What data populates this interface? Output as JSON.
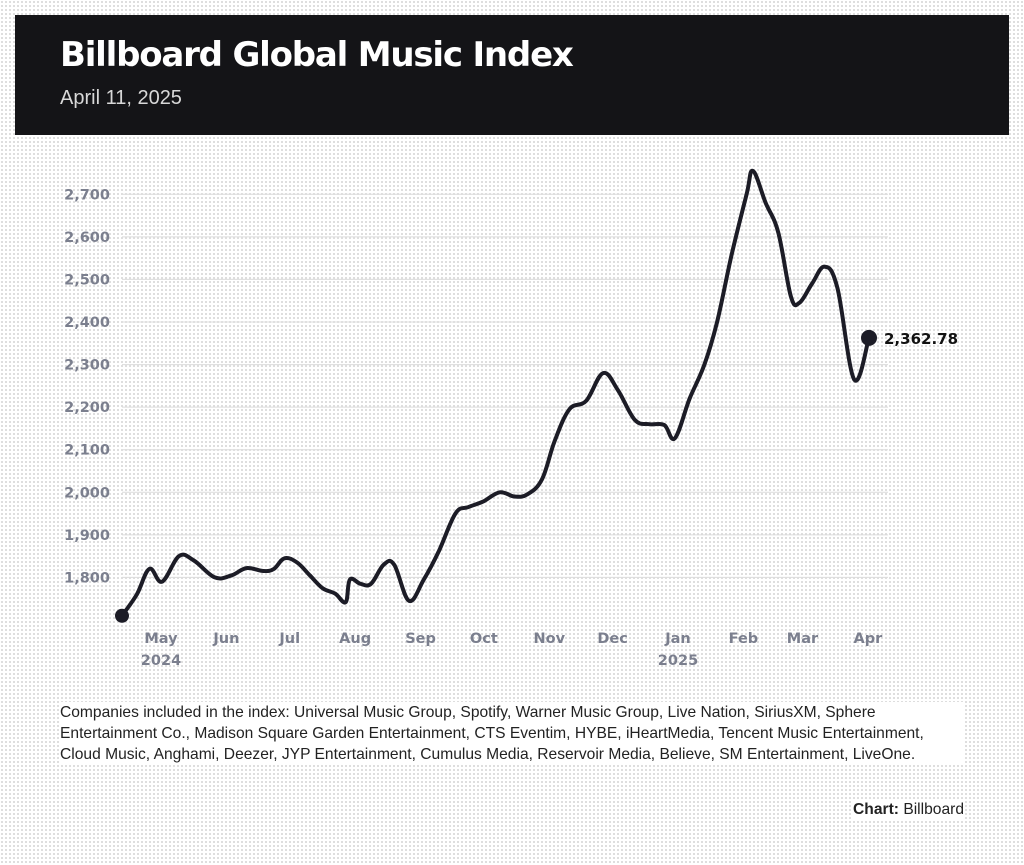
{
  "header": {
    "title": "Billboard Global Music Index",
    "subtitle": "April 11, 2025"
  },
  "colors": {
    "header_bg": "#141417",
    "line": "#1c1c26",
    "tick_text": "#7b7f8e",
    "grid": "#dcdcdc"
  },
  "chart_data": {
    "type": "line",
    "title": "Billboard Global Music Index",
    "subtitle": "April 11, 2025",
    "xlabel": "",
    "ylabel": "",
    "ylim": [
      1700,
      2750
    ],
    "xlim": [
      "2024-04-22",
      "2025-04-20"
    ],
    "y_ticks": [
      1800,
      1900,
      2000,
      2100,
      2200,
      2300,
      2400,
      2500,
      2600,
      2700
    ],
    "y_tick_labels": [
      "1,800",
      "1,900",
      "2,000",
      "2,100",
      "2,200",
      "2,300",
      "2,400",
      "2,500",
      "2,600",
      "2,700"
    ],
    "x_ticks": [
      {
        "date": "2024-05-01",
        "label": "May",
        "year": "2024"
      },
      {
        "date": "2024-06-01",
        "label": "Jun",
        "year": ""
      },
      {
        "date": "2024-07-01",
        "label": "Jul",
        "year": ""
      },
      {
        "date": "2024-08-01",
        "label": "Aug",
        "year": ""
      },
      {
        "date": "2024-09-01",
        "label": "Sep",
        "year": ""
      },
      {
        "date": "2024-10-01",
        "label": "Oct",
        "year": ""
      },
      {
        "date": "2024-11-01",
        "label": "Nov",
        "year": ""
      },
      {
        "date": "2024-12-01",
        "label": "Dec",
        "year": ""
      },
      {
        "date": "2025-01-01",
        "label": "Jan",
        "year": "2025"
      },
      {
        "date": "2025-02-01",
        "label": "Feb",
        "year": ""
      },
      {
        "date": "2025-03-01",
        "label": "Mar",
        "year": ""
      },
      {
        "date": "2025-04-01",
        "label": "Apr",
        "year": ""
      }
    ],
    "grid": true,
    "series": [
      {
        "values": [
          {
            "x": "2024-04-22",
            "y": 1710
          },
          {
            "x": "2024-04-29",
            "y": 1760
          },
          {
            "x": "2024-05-05",
            "y": 1820
          },
          {
            "x": "2024-05-11",
            "y": 1790
          },
          {
            "x": "2024-05-19",
            "y": 1850
          },
          {
            "x": "2024-05-26",
            "y": 1840
          },
          {
            "x": "2024-06-05",
            "y": 1800
          },
          {
            "x": "2024-06-13",
            "y": 1805
          },
          {
            "x": "2024-06-20",
            "y": 1822
          },
          {
            "x": "2024-06-28",
            "y": 1815
          },
          {
            "x": "2024-07-03",
            "y": 1820
          },
          {
            "x": "2024-07-08",
            "y": 1845
          },
          {
            "x": "2024-07-14",
            "y": 1835
          },
          {
            "x": "2024-07-20",
            "y": 1805
          },
          {
            "x": "2024-07-26",
            "y": 1775
          },
          {
            "x": "2024-08-01",
            "y": 1762
          },
          {
            "x": "2024-08-06",
            "y": 1742
          },
          {
            "x": "2024-08-08",
            "y": 1795
          },
          {
            "x": "2024-08-13",
            "y": 1785
          },
          {
            "x": "2024-08-18",
            "y": 1785
          },
          {
            "x": "2024-08-24",
            "y": 1830
          },
          {
            "x": "2024-08-29",
            "y": 1830
          },
          {
            "x": "2024-09-05",
            "y": 1745
          },
          {
            "x": "2024-09-12",
            "y": 1795
          },
          {
            "x": "2024-09-19",
            "y": 1860
          },
          {
            "x": "2024-09-27",
            "y": 1950
          },
          {
            "x": "2024-10-03",
            "y": 1965
          },
          {
            "x": "2024-10-10",
            "y": 1978
          },
          {
            "x": "2024-10-18",
            "y": 2000
          },
          {
            "x": "2024-10-25",
            "y": 1990
          },
          {
            "x": "2024-10-31",
            "y": 1995
          },
          {
            "x": "2024-11-07",
            "y": 2030
          },
          {
            "x": "2024-11-13",
            "y": 2120
          },
          {
            "x": "2024-11-20",
            "y": 2195
          },
          {
            "x": "2024-11-28",
            "y": 2215
          },
          {
            "x": "2024-12-06",
            "y": 2280
          },
          {
            "x": "2024-12-13",
            "y": 2240
          },
          {
            "x": "2024-12-21",
            "y": 2170
          },
          {
            "x": "2024-12-28",
            "y": 2160
          },
          {
            "x": "2025-01-04",
            "y": 2158
          },
          {
            "x": "2025-01-09",
            "y": 2127
          },
          {
            "x": "2025-01-16",
            "y": 2220
          },
          {
            "x": "2025-01-23",
            "y": 2300
          },
          {
            "x": "2025-01-29",
            "y": 2400
          },
          {
            "x": "2025-02-05",
            "y": 2560
          },
          {
            "x": "2025-02-12",
            "y": 2700
          },
          {
            "x": "2025-02-15",
            "y": 2755
          },
          {
            "x": "2025-02-21",
            "y": 2680
          },
          {
            "x": "2025-02-27",
            "y": 2610
          },
          {
            "x": "2025-03-05",
            "y": 2460
          },
          {
            "x": "2025-03-09",
            "y": 2445
          },
          {
            "x": "2025-03-15",
            "y": 2490
          },
          {
            "x": "2025-03-21",
            "y": 2530
          },
          {
            "x": "2025-03-27",
            "y": 2480
          },
          {
            "x": "2025-04-04",
            "y": 2265
          },
          {
            "x": "2025-04-11",
            "y": 2362.78
          }
        ]
      }
    ],
    "end_label": "2,362.78"
  },
  "footnote": "Companies included in the index: Universal Music Group, Spotify, Warner Music Group, Live Nation, SiriusXM, Sphere Entertainment Co., Madison Square Garden Entertainment, CTS Eventim, HYBE, iHeartMedia, Tencent Music Entertainment, Cloud Music, Anghami, Deezer, JYP Entertainment, Cumulus Media, Reservoir Media, Believe, SM Entertainment, LiveOne.",
  "credit": {
    "label": "Chart:",
    "source": "Billboard"
  }
}
